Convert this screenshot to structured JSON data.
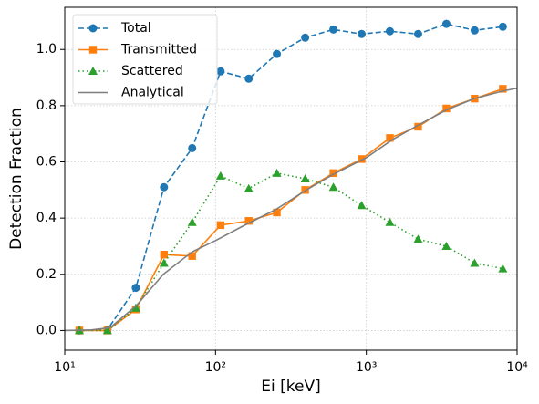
{
  "chart_data": {
    "type": "line",
    "x_label": "Ei [keV]",
    "y_label": "Detection Fraction",
    "xscale": "log",
    "xlim": [
      10,
      10000
    ],
    "xticks": [
      {
        "value": 10,
        "label": "10¹"
      },
      {
        "value": 100,
        "label": "10²"
      },
      {
        "value": 1000,
        "label": "10³"
      },
      {
        "value": 10000,
        "label": "10⁴"
      }
    ],
    "ylim": [
      -0.07,
      1.15
    ],
    "yticks": [
      {
        "value": 0,
        "label": "0.0"
      },
      0.2,
      0.4,
      0.6,
      0.8,
      {
        "value": 1,
        "label": "1.0"
      }
    ],
    "grid": true,
    "legend": "upper left",
    "series": [
      {
        "name": "Total",
        "color": "#1f77b4",
        "marker": "circle",
        "linestyle": "dashed",
        "x": [
          12.5,
          19.2,
          29.6,
          45.5,
          70,
          108,
          166,
          255,
          393,
          605,
          931,
          1433,
          2206,
          3396,
          5227,
          8045
        ],
        "values": [
          0,
          0.003,
          0.152,
          0.51,
          0.649,
          0.922,
          0.896,
          0.984,
          1.042,
          1.071,
          1.055,
          1.065,
          1.055,
          1.091,
          1.068,
          1.081
        ]
      },
      {
        "name": "Transmitted",
        "color": "#ff7f0e",
        "marker": "square",
        "linestyle": "solid",
        "x": [
          12.5,
          19.2,
          29.6,
          45.5,
          70,
          108,
          166,
          255,
          393,
          605,
          931,
          1433,
          2206,
          3396,
          5227,
          8045
        ],
        "values": [
          0,
          0,
          0.075,
          0.27,
          0.265,
          0.375,
          0.39,
          0.42,
          0.5,
          0.56,
          0.61,
          0.685,
          0.725,
          0.79,
          0.825,
          0.86
        ]
      },
      {
        "name": "Scattered",
        "color": "#2ca02c",
        "marker": "triangle",
        "linestyle": "dotted",
        "x": [
          12.5,
          19.2,
          29.6,
          45.5,
          70,
          108,
          166,
          255,
          393,
          605,
          931,
          1433,
          2206,
          3396,
          5227,
          8045
        ],
        "values": [
          0,
          0,
          0.08,
          0.24,
          0.385,
          0.55,
          0.505,
          0.56,
          0.54,
          0.51,
          0.445,
          0.385,
          0.325,
          0.3,
          0.24,
          0.22
        ]
      },
      {
        "name": "Analytical",
        "color": "#7f7f7f",
        "marker": "none",
        "linestyle": "solid",
        "x": [
          10,
          15,
          20,
          30,
          45,
          70,
          100,
          150,
          250,
          400,
          600,
          1000,
          1500,
          2200,
          3400,
          5200,
          8000,
          10000
        ],
        "values": [
          0,
          0.002,
          0.01,
          0.09,
          0.2,
          0.28,
          0.32,
          0.37,
          0.43,
          0.5,
          0.555,
          0.615,
          0.68,
          0.73,
          0.785,
          0.825,
          0.852,
          0.862
        ]
      }
    ]
  }
}
